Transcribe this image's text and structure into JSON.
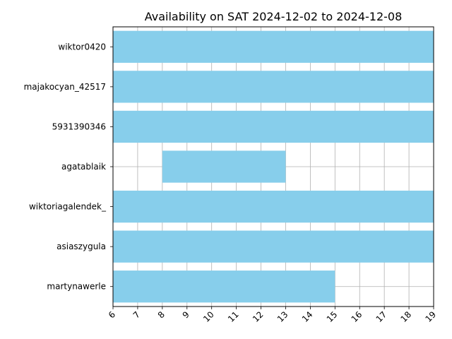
{
  "chart_data": {
    "type": "bar",
    "orientation": "horizontal",
    "title": "Availability on SAT 2024-12-02 to 2024-12-08",
    "xlabel": "",
    "ylabel": "",
    "xlim": [
      6,
      19
    ],
    "xticks": [
      6,
      7,
      8,
      9,
      10,
      11,
      12,
      13,
      14,
      15,
      16,
      17,
      18,
      19
    ],
    "grid": true,
    "bar_color": "#87CEEB",
    "grid_color": "#b0b0b0",
    "categories": [
      "wiktor0420",
      "majakocyan_42517",
      "5931390346",
      "agatablaik",
      "wiktoriagalendek_",
      "asiaszygula",
      "martynawerle"
    ],
    "series": [
      {
        "start": [
          6,
          6,
          6,
          8,
          6,
          6,
          6
        ],
        "end": [
          19,
          19,
          19,
          13,
          19,
          19,
          15
        ]
      }
    ]
  }
}
